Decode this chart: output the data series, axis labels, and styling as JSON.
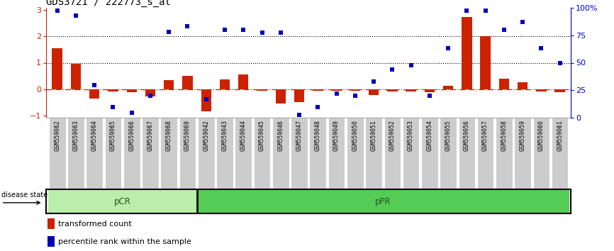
{
  "title": "GDS3721 / 222773_s_at",
  "samples": [
    "GSM559062",
    "GSM559063",
    "GSM559064",
    "GSM559065",
    "GSM559066",
    "GSM559067",
    "GSM559068",
    "GSM559069",
    "GSM559042",
    "GSM559043",
    "GSM559044",
    "GSM559045",
    "GSM559046",
    "GSM559047",
    "GSM559048",
    "GSM559049",
    "GSM559050",
    "GSM559051",
    "GSM559052",
    "GSM559053",
    "GSM559054",
    "GSM559055",
    "GSM559056",
    "GSM559057",
    "GSM559058",
    "GSM559059",
    "GSM559060",
    "GSM559061"
  ],
  "transformed_count": [
    1.55,
    0.95,
    -0.35,
    -0.08,
    -0.12,
    -0.27,
    0.35,
    0.5,
    -0.85,
    0.36,
    0.55,
    -0.07,
    -0.55,
    -0.5,
    -0.07,
    -0.07,
    -0.07,
    -0.22,
    -0.08,
    -0.08,
    -0.12,
    0.12,
    2.75,
    2.0,
    0.38,
    0.25,
    -0.1,
    -0.12
  ],
  "percentile_rank": [
    97,
    93,
    30,
    10,
    5,
    20,
    78,
    83,
    17,
    80,
    80,
    77,
    77,
    3,
    10,
    22,
    20,
    33,
    44,
    48,
    20,
    63,
    97,
    97,
    80,
    87,
    63,
    50
  ],
  "pCR_count": 8,
  "bar_color": "#cc2200",
  "dot_color": "#0000bb",
  "ylim_left": [
    -1.1,
    3.1
  ],
  "ylim_right": [
    0,
    100
  ],
  "hline_y": [
    1.0,
    2.0
  ],
  "zero_line_color": "#cc2200",
  "hline_color": "#000000",
  "pCR_color": "#bbeeaa",
  "pPR_color": "#55cc55",
  "xtick_bg_color": "#cccccc",
  "right_ytick_labels": [
    "0",
    "25",
    "50",
    "75",
    "100%"
  ],
  "right_ytick_values": [
    0,
    25,
    50,
    75,
    100
  ],
  "title_fontsize": 10
}
